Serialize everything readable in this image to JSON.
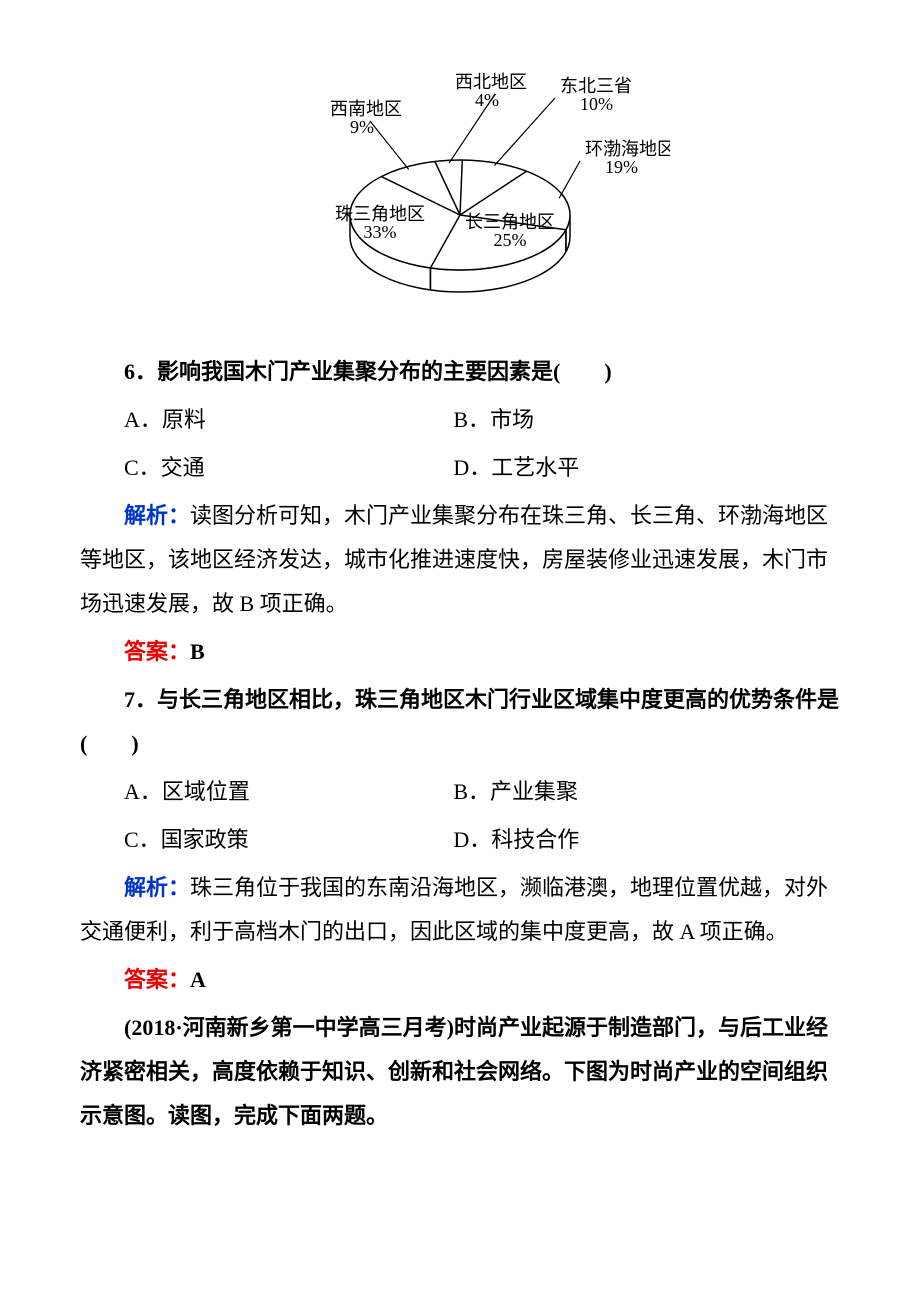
{
  "chart": {
    "type": "pie",
    "background_color": "#ffffff",
    "line_color": "#000000",
    "line_width": 1.5,
    "label_fontsize": 18,
    "slices": [
      {
        "label": "西北地区",
        "pct": "4%",
        "value": 4
      },
      {
        "label": "东北三省",
        "pct": "10%",
        "value": 10
      },
      {
        "label": "环渤海地区",
        "pct": "19%",
        "value": 19
      },
      {
        "label": "长三角地区",
        "pct": "25%",
        "value": 25
      },
      {
        "label": "珠三角地区",
        "pct": "33%",
        "value": 33
      },
      {
        "label": "西南地区",
        "pct": "9%",
        "value": 9
      }
    ]
  },
  "q6": {
    "stem": "6．影响我国木门产业集聚分布的主要因素是(　　)",
    "A": "A．原料",
    "B": "B．市场",
    "C": "C．交通",
    "D": "D．工艺水平",
    "analysis_label": "解析：",
    "analysis": "读图分析可知，木门产业集聚分布在珠三角、长三角、环渤海地区等地区，该地区经济发达，城市化推进速度快，房屋装修业迅速发展，木门市场迅速发展，故 B 项正确。",
    "answer_label": "答案：",
    "answer": "B"
  },
  "q7": {
    "stem": "7．与长三角地区相比，珠三角地区木门行业区域集中度更高的优势条件是(　　)",
    "A": "A．区域位置",
    "B": "B．产业集聚",
    "C": "C．国家政策",
    "D": "D．科技合作",
    "analysis_label": "解析：",
    "analysis": "珠三角位于我国的东南沿海地区，濒临港澳，地理位置优越，对外交通便利，利于高档木门的出口，因此区域的集中度更高，故 A 项正确。",
    "answer_label": "答案：",
    "answer": "A"
  },
  "passage": {
    "source": "(2018·河南新乡第一中学高三月考)",
    "text": "时尚产业起源于制造部门，与后工业经济紧密相关，高度依赖于知识、创新和社会网络。下图为时尚产业的空间组织示意图。读图，完成下面两题。"
  }
}
